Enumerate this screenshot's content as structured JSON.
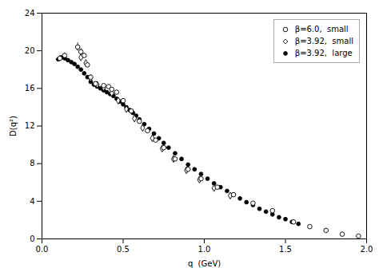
{
  "chart_data": {
    "type": "scatter",
    "xlabel": "q  (GeV)",
    "ylabel": "D(q²)",
    "xlim": [
      0.0,
      2.0
    ],
    "ylim": [
      0.0,
      24.0
    ],
    "xticks": [
      {
        "value": 0.0,
        "label": "0.0"
      },
      0.5,
      {
        "value": 1.0,
        "label": "1.0"
      },
      1.5,
      {
        "value": 2.0,
        "label": "2.0"
      }
    ],
    "yticks": [
      0,
      4,
      8,
      12,
      16,
      20,
      24
    ],
    "legend": "upper right",
    "series": [
      {
        "name": "β=6.0,  small",
        "color": "black",
        "marker": "open_circle",
        "x": [
          0.11,
          0.14,
          0.22,
          0.24,
          0.26,
          0.28,
          0.3,
          0.33,
          0.38,
          0.41,
          0.43,
          0.46,
          0.5,
          0.55,
          0.6,
          0.65,
          0.7,
          0.75,
          0.82,
          0.9,
          0.98,
          1.08,
          1.18,
          1.3,
          1.42,
          1.55,
          1.65,
          1.75,
          1.85,
          1.95
        ],
        "values": [
          19.2,
          19.5,
          20.4,
          19.9,
          19.5,
          18.5,
          17.2,
          16.5,
          16.3,
          16.2,
          15.9,
          15.6,
          14.7,
          13.6,
          12.5,
          11.5,
          10.5,
          9.7,
          8.5,
          7.4,
          6.4,
          5.5,
          4.7,
          3.8,
          3.0,
          1.8,
          1.3,
          0.9,
          0.5,
          0.3
        ],
        "yerr": [
          0.3,
          0.3,
          0.45,
          0.35,
          0.25,
          0.2,
          0.2,
          0.18,
          0.15,
          0.15,
          0.12,
          0.12,
          0.1,
          0.1,
          0.09,
          0.08,
          0.08,
          0.07,
          0.06,
          0.06,
          0.05,
          0.05,
          0.05,
          0.05,
          0.04,
          0.04,
          0.04,
          0.03,
          0.03,
          0.03
        ]
      },
      {
        "name": "β=3.92,  small",
        "color": "black",
        "marker": "open_diamond",
        "x": [
          0.24,
          0.27,
          0.3,
          0.34,
          0.38,
          0.43,
          0.47,
          0.52,
          0.57,
          0.62,
          0.68,
          0.74,
          0.81,
          0.89,
          0.97,
          1.06,
          1.16
        ],
        "values": [
          19.3,
          18.7,
          17.1,
          16.4,
          16.1,
          15.5,
          14.7,
          13.8,
          12.8,
          11.8,
          10.7,
          9.6,
          8.5,
          7.3,
          6.3,
          5.4,
          4.6
        ],
        "yerr": [
          0.3,
          0.25,
          0.2,
          0.18,
          0.15,
          0.13,
          0.12,
          0.1,
          0.09,
          0.09,
          0.08,
          0.08,
          0.07,
          0.07,
          0.06,
          0.06,
          0.05
        ]
      },
      {
        "name": "β=3.92,  large",
        "color": "black",
        "marker": "filled_circle",
        "x": [
          0.1,
          0.12,
          0.14,
          0.16,
          0.18,
          0.2,
          0.22,
          0.24,
          0.26,
          0.28,
          0.3,
          0.32,
          0.34,
          0.36,
          0.38,
          0.4,
          0.42,
          0.44,
          0.46,
          0.48,
          0.5,
          0.52,
          0.54,
          0.56,
          0.58,
          0.6,
          0.63,
          0.66,
          0.69,
          0.72,
          0.75,
          0.78,
          0.82,
          0.86,
          0.9,
          0.94,
          0.98,
          1.02,
          1.06,
          1.1,
          1.14,
          1.18,
          1.22,
          1.26,
          1.3,
          1.34,
          1.38,
          1.42,
          1.46,
          1.5,
          1.54,
          1.58
        ],
        "values": [
          19.1,
          19.3,
          19.2,
          19.0,
          18.8,
          18.6,
          18.3,
          18.0,
          17.6,
          17.2,
          16.7,
          16.4,
          16.2,
          16.0,
          15.8,
          15.6,
          15.4,
          15.2,
          14.9,
          14.6,
          14.3,
          14.0,
          13.7,
          13.4,
          13.1,
          12.7,
          12.2,
          11.7,
          11.2,
          10.7,
          10.2,
          9.7,
          9.1,
          8.5,
          7.9,
          7.4,
          6.9,
          6.4,
          5.9,
          5.5,
          5.1,
          4.7,
          4.3,
          3.9,
          3.6,
          3.2,
          2.9,
          2.6,
          2.3,
          2.1,
          1.8,
          1.6
        ],
        "yerr": [
          0.15,
          0.13,
          0.12,
          0.11,
          0.1,
          0.1,
          0.09,
          0.09,
          0.08,
          0.08,
          0.08,
          0.07,
          0.07,
          0.07,
          0.07,
          0.06,
          0.06,
          0.06,
          0.06,
          0.06,
          0.06,
          0.05,
          0.05,
          0.05,
          0.05,
          0.05,
          0.05,
          0.05,
          0.05,
          0.05,
          0.04,
          0.04,
          0.04,
          0.04,
          0.04,
          0.04,
          0.04,
          0.04,
          0.04,
          0.04,
          0.04,
          0.04,
          0.04,
          0.04,
          0.04,
          0.04,
          0.04,
          0.04,
          0.04,
          0.04,
          0.04,
          0.04
        ]
      }
    ]
  }
}
